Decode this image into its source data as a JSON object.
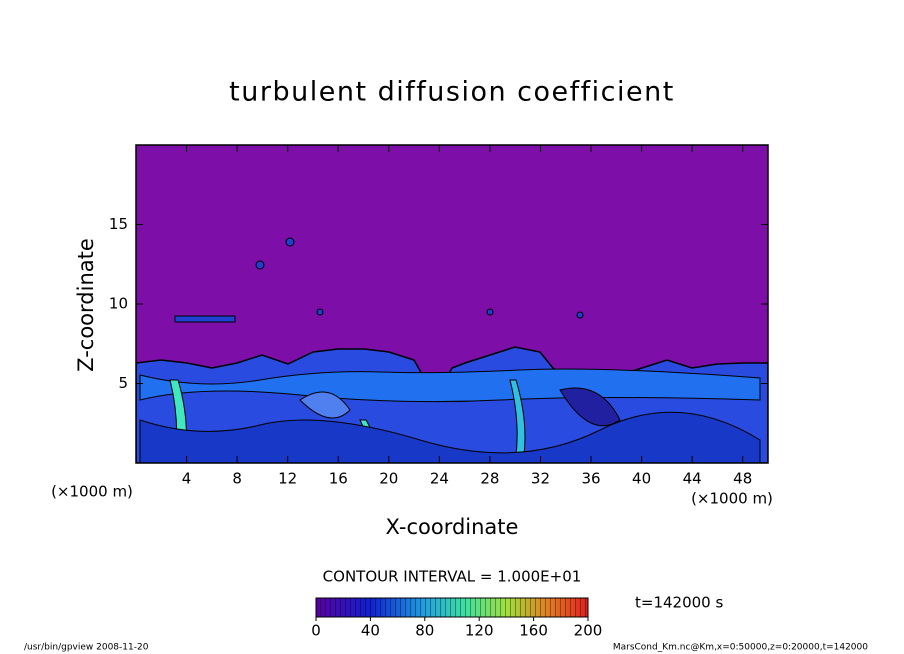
{
  "chart_data": {
    "type": "contour",
    "title": "turbulent diffusion coefficient",
    "xlabel": "X-coordinate",
    "ylabel": "Z-coordinate",
    "xunit": "(×1000 m)",
    "yunit": "(×1000 m)",
    "xlim": [
      0,
      50
    ],
    "xticks": [
      4,
      8,
      12,
      16,
      20,
      24,
      28,
      32,
      36,
      40,
      44,
      48
    ],
    "ylim": [
      0,
      20
    ],
    "yticks": [
      5,
      10,
      15
    ],
    "contour_interval_label": "CONTOUR INTERVAL = 1.000E+01",
    "colorbar": {
      "lim": [
        0,
        200
      ],
      "ticks": [
        0,
        40,
        80,
        120,
        160,
        200
      ]
    },
    "time_label": "t=142000 s",
    "footer_left": "/usr/bin/gpview   2008-11-20",
    "footer_right": "MarsCond_Km.nc@Km,x=0:50000,z=0:20000,t=142000"
  }
}
